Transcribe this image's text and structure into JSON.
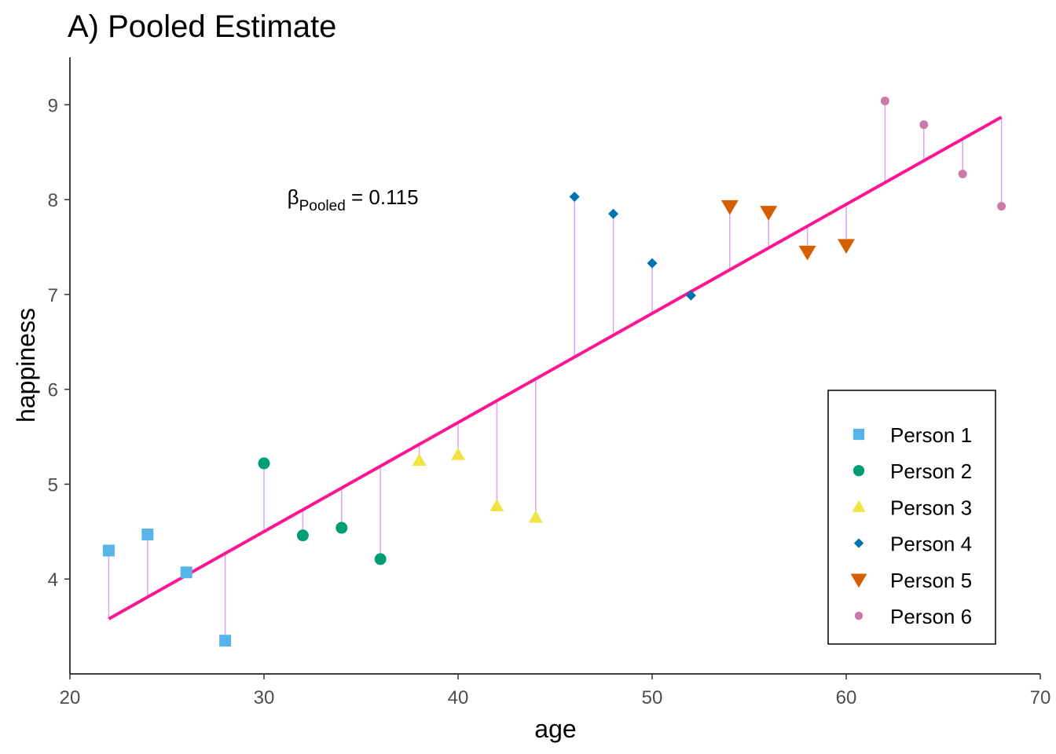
{
  "chart_data": {
    "type": "scatter",
    "title": "A) Pooled Estimate",
    "xlabel": "age",
    "ylabel": "happiness",
    "xlim": [
      20,
      70
    ],
    "ylim": [
      3.0,
      9.5
    ],
    "x_ticks": [
      20,
      30,
      40,
      50,
      60,
      70
    ],
    "y_ticks": [
      4,
      5,
      6,
      7,
      8,
      9
    ],
    "grid": false,
    "legend_position": "bottom-right",
    "annotation": {
      "beta": "β",
      "sub": "Pooled",
      "eq": " = 0.115",
      "x": 31.2,
      "y": 7.95
    },
    "fit_line": {
      "slope": 0.115,
      "intercept": 1.05,
      "x_range": [
        22,
        68
      ],
      "color": "#ff1493"
    },
    "residual_color": "#d9a6f2",
    "series": [
      {
        "name": "Person 1",
        "shape": "square",
        "color": "#56b4e9",
        "points": [
          [
            22,
            4.3
          ],
          [
            24,
            4.47
          ],
          [
            26,
            4.07
          ],
          [
            28,
            3.35
          ]
        ]
      },
      {
        "name": "Person 2",
        "shape": "circle",
        "color": "#009e73",
        "points": [
          [
            30,
            5.22
          ],
          [
            32,
            4.46
          ],
          [
            34,
            4.54
          ],
          [
            36,
            4.21
          ]
        ]
      },
      {
        "name": "Person 3",
        "shape": "triangle-up",
        "color": "#f0e442",
        "points": [
          [
            38,
            5.25
          ],
          [
            40,
            5.31
          ],
          [
            42,
            4.77
          ],
          [
            44,
            4.65
          ]
        ]
      },
      {
        "name": "Person 4",
        "shape": "diamond",
        "color": "#0072b2",
        "points": [
          [
            46,
            8.03
          ],
          [
            48,
            7.85
          ],
          [
            50,
            7.33
          ],
          [
            52,
            6.99
          ]
        ]
      },
      {
        "name": "Person 5",
        "shape": "triangle-down",
        "color": "#d55e00",
        "points": [
          [
            54,
            7.93
          ],
          [
            56,
            7.87
          ],
          [
            58,
            7.45
          ],
          [
            60,
            7.52
          ]
        ]
      },
      {
        "name": "Person 6",
        "shape": "small-circle",
        "color": "#cc79a7",
        "points": [
          [
            62,
            9.04
          ],
          [
            64,
            8.79
          ],
          [
            66,
            8.27
          ],
          [
            68,
            7.93
          ]
        ]
      }
    ]
  }
}
